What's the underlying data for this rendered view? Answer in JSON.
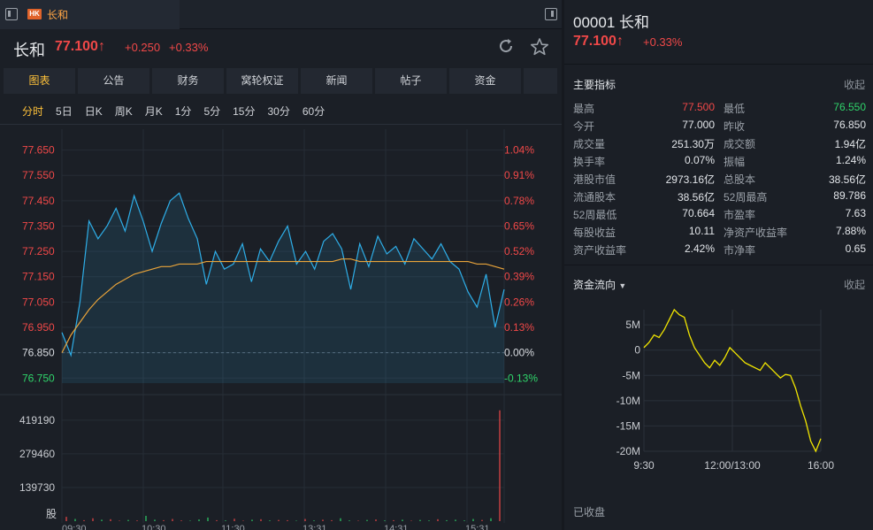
{
  "tab": {
    "badge": "HK",
    "title": "长和"
  },
  "header": {
    "name": "长和",
    "price": "77.100",
    "arrow": "↑",
    "change": "+0.250",
    "change_pct": "+0.33%"
  },
  "main_tabs": [
    "图表",
    "公告",
    "财务",
    "窝轮权证",
    "新闻",
    "帖子",
    "资金"
  ],
  "period_tabs": [
    "分时",
    "5日",
    "日K",
    "周K",
    "月K",
    "1分",
    "5分",
    "15分",
    "30分",
    "60分"
  ],
  "icons": {
    "refresh": "refresh-icon",
    "star": "star-icon",
    "panel_left": "panel-toggle-icon",
    "panel_right": "panel-toggle-icon"
  },
  "colors": {
    "up": "#f04848",
    "down": "#2fd36a",
    "price_line": "#2eaee8",
    "avg_line": "#e8a33a",
    "flow_line": "#f2e600",
    "active": "#ffc23a"
  },
  "chart_data": [
    {
      "type": "line",
      "y_price_ticks": [
        "77.650",
        "77.550",
        "77.450",
        "77.350",
        "77.250",
        "77.150",
        "77.050",
        "76.950",
        "76.850",
        "76.750"
      ],
      "y_pct_ticks": [
        "1.04%",
        "0.91%",
        "0.78%",
        "0.65%",
        "0.52%",
        "0.39%",
        "0.26%",
        "0.13%",
        "0.00%",
        "-0.13%"
      ],
      "x_ticks": [
        "09:30",
        "10:30",
        "11:30",
        "13:31",
        "14:31",
        "15:31"
      ],
      "prev_close": 76.85,
      "ylim": [
        76.73,
        77.68
      ],
      "series": [
        {
          "values": [
            76.93,
            76.84,
            77.05,
            77.37,
            77.3,
            77.35,
            77.42,
            77.33,
            77.47,
            77.37,
            77.25,
            77.36,
            77.45,
            77.48,
            77.38,
            77.3,
            77.12,
            77.25,
            77.18,
            77.2,
            77.28,
            77.13,
            77.26,
            77.21,
            77.29,
            77.35,
            77.2,
            77.25,
            77.18,
            77.29,
            77.32,
            77.26,
            77.1,
            77.28,
            77.19,
            77.31,
            77.24,
            77.27,
            77.2,
            77.3,
            77.26,
            77.22,
            77.28,
            77.21,
            77.18,
            77.09,
            77.03,
            77.16,
            76.95,
            77.1
          ]
        },
        {
          "values": [
            76.85,
            76.92,
            76.97,
            77.02,
            77.06,
            77.09,
            77.12,
            77.14,
            77.16,
            77.17,
            77.18,
            77.19,
            77.19,
            77.2,
            77.2,
            77.2,
            77.21,
            77.21,
            77.21,
            77.21,
            77.21,
            77.21,
            77.21,
            77.21,
            77.21,
            77.21,
            77.21,
            77.21,
            77.21,
            77.21,
            77.21,
            77.22,
            77.22,
            77.21,
            77.21,
            77.21,
            77.21,
            77.21,
            77.21,
            77.21,
            77.21,
            77.21,
            77.21,
            77.21,
            77.21,
            77.21,
            77.2,
            77.2,
            77.19,
            77.18
          ]
        }
      ]
    },
    {
      "type": "bar",
      "y_ticks": [
        "419190",
        "279460",
        "139730",
        "股"
      ],
      "ylim": [
        0,
        470000
      ],
      "values": [
        18000,
        9000,
        4000,
        12000,
        6000,
        8000,
        2000,
        5000,
        3000,
        22000,
        6000,
        4000,
        9000,
        3000,
        2000,
        7000,
        15000,
        4000,
        3000,
        10000,
        2000,
        6000,
        8000,
        3000,
        5000,
        4000,
        2000,
        9000,
        3000,
        6000,
        4000,
        12000,
        3000,
        2000,
        5000,
        7000,
        3000,
        4000,
        6000,
        2000,
        5000,
        3000,
        8000,
        4000,
        6000,
        3000,
        9000,
        5000,
        12000,
        460000
      ]
    },
    {
      "type": "line",
      "y_ticks": [
        "5M",
        "0",
        "-5M",
        "-10M",
        "-15M",
        "-20M"
      ],
      "x_ticks": [
        "9:30",
        "12:00/13:00",
        "16:00"
      ],
      "ylim": [
        -20,
        8
      ],
      "series": [
        {
          "values": [
            0.5,
            1.5,
            3.0,
            2.5,
            4.0,
            6.0,
            8.0,
            7.0,
            6.5,
            3.0,
            0.5,
            -1.0,
            -2.5,
            -3.5,
            -2.0,
            -3.0,
            -1.5,
            0.5,
            -0.5,
            -1.5,
            -2.5,
            -3.0,
            -3.5,
            -4.0,
            -2.5,
            -3.5,
            -4.5,
            -5.5,
            -4.8,
            -5.0,
            -7.5,
            -11.0,
            -14.0,
            -18.0,
            -20.0,
            -17.5
          ]
        }
      ]
    }
  ],
  "right_panel": {
    "title": "00001 长和",
    "price": "77.100",
    "arrow": "↑",
    "change_pct": "+0.33%",
    "indicators_title": "主要指标",
    "collapse": "收起",
    "stats": [
      {
        "label": "最高",
        "value": "77.500",
        "label2": "最低",
        "value2": "76.550",
        "c1": "up",
        "c2": "down"
      },
      {
        "label": "今开",
        "value": "77.000",
        "label2": "昨收",
        "value2": "76.850"
      },
      {
        "label": "成交量",
        "value": "251.30万",
        "label2": "成交额",
        "value2": "1.94亿"
      },
      {
        "label": "换手率",
        "value": "0.07%",
        "label2": "振幅",
        "value2": "1.24%"
      },
      {
        "label": "港股市值",
        "value": "2973.16亿",
        "label2": "总股本",
        "value2": "38.56亿"
      },
      {
        "label": "流通股本",
        "value": "38.56亿",
        "label2": "52周最高",
        "value2": "89.786"
      },
      {
        "label": "52周最低",
        "value": "70.664",
        "label2": "市盈率",
        "value2": "7.63"
      },
      {
        "label": "每股收益",
        "value": "10.11",
        "label2": "净资产收益率",
        "value2": "7.88%"
      },
      {
        "label": "资产收益率",
        "value": "2.42%",
        "label2": "市净率",
        "value2": "0.65"
      }
    ],
    "flow_title": "资金流向",
    "flow_collapse": "收起",
    "closed": "已收盘"
  }
}
